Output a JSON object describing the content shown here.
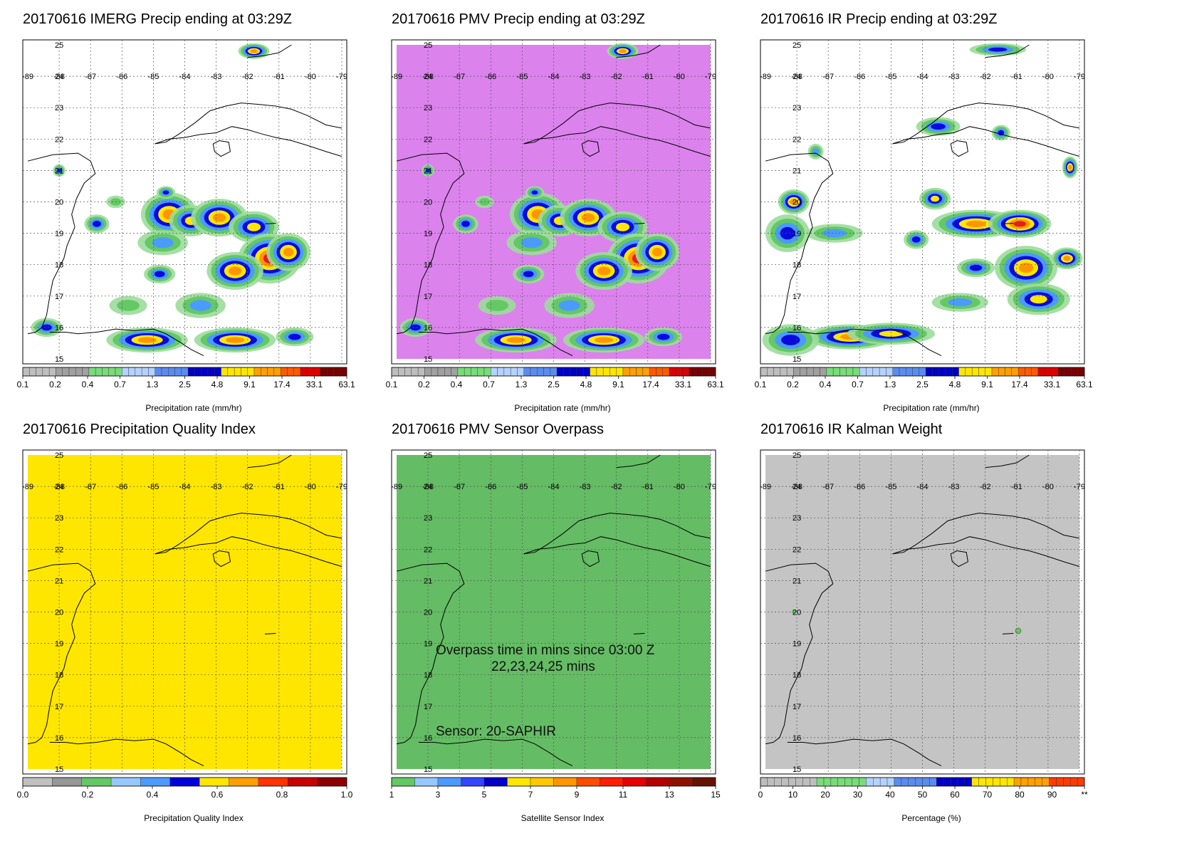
{
  "lon_labels": [
    "-89",
    "-88",
    "-87",
    "-86",
    "-85",
    "-84",
    "-83",
    "-82",
    "-81",
    "-80",
    "-79"
  ],
  "lat_labels": [
    "15",
    "16",
    "17",
    "18",
    "19",
    "20",
    "21",
    "22",
    "23",
    "24",
    "25"
  ],
  "colorbars": {
    "precip": {
      "ticks": [
        "0.1",
        "0.2",
        "0.4",
        "0.7",
        "1.3",
        "2.5",
        "4.8",
        "9.1",
        "17.4",
        "33.1",
        "63.1"
      ],
      "label": "Precipitation rate (mm/hr)"
    },
    "quality": {
      "ticks": [
        "0.0",
        "0.2",
        "0.4",
        "0.6",
        "0.8",
        "1.0"
      ],
      "label": "Precipitation Quality Index",
      "colors": [
        "#c0c0c0",
        "#969696",
        "#64c864",
        "#96c8ff",
        "#4b9bff",
        "#0000dc",
        "#ffe600",
        "#ffa000",
        "#ff3200",
        "#c80000",
        "#8c0000"
      ]
    },
    "sensor": {
      "ticks": [
        "1",
        "3",
        "5",
        "7",
        "9",
        "11",
        "13",
        "15"
      ],
      "label": "Satellite Sensor Index",
      "colors": [
        "#64c864",
        "#96c8ff",
        "#4b9bff",
        "#3246ff",
        "#0000c8",
        "#ffe600",
        "#ffc800",
        "#ff9600",
        "#ff4b00",
        "#ff1e00",
        "#e60000",
        "#b40000",
        "#8c1400",
        "#641400"
      ]
    },
    "percent": {
      "ticks": [
        "0",
        "10",
        "20",
        "30",
        "40",
        "50",
        "60",
        "70",
        "80",
        "90",
        "**"
      ],
      "label": "Percentage (%)"
    }
  },
  "panels": [
    {
      "title": "20170616 IMERG Precip ending at 03:29Z",
      "kind": "precip",
      "colorbar": "precip"
    },
    {
      "title": "20170616 PMV Precip ending at 03:29Z",
      "kind": "pmv",
      "colorbar": "precip"
    },
    {
      "title": "20170616 IR Precip ending at 03:29Z",
      "kind": "ir",
      "colorbar": "precip"
    },
    {
      "title": "20170616 Precipitation Quality Index",
      "kind": "quality",
      "colorbar": "quality"
    },
    {
      "title": "20170616 PMV Sensor Overpass",
      "kind": "sensor",
      "colorbar": "sensor",
      "overlay": {
        "line1": "Overpass time in mins since 03:00 Z",
        "line2": "22,23,24,25 mins",
        "sensor": "Sensor:  20-SAPHIR"
      }
    },
    {
      "title": "20170616 IR Kalman Weight",
      "kind": "kalman",
      "colorbar": "percent"
    }
  ],
  "colors": {
    "pmv_background": "#db82ed",
    "quality_fill": "#ffe600",
    "sensor_fill": "#64bc64",
    "kalman_fill": "#c4c4c4"
  }
}
